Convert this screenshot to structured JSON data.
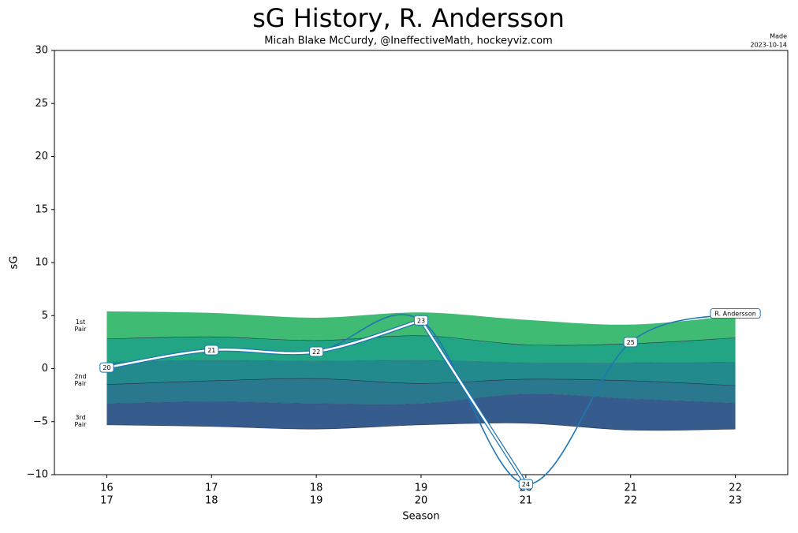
{
  "chart_data": {
    "type": "line",
    "title": "sG History, R. Andersson",
    "subtitle": "Micah Blake McCurdy, @IneffectiveMath, hockeyviz.com",
    "made": [
      "Made",
      "2023-10-14"
    ],
    "xlabel": "Season",
    "ylabel": "sG",
    "categories": [
      [
        "16",
        "17"
      ],
      [
        "17",
        "18"
      ],
      [
        "18",
        "19"
      ],
      [
        "19",
        "20"
      ],
      [
        "20",
        "21"
      ],
      [
        "21",
        "22"
      ],
      [
        "22",
        "23"
      ]
    ],
    "ylim": [
      -10,
      30
    ],
    "yticks": [
      {
        "value": -10,
        "label": "−10"
      },
      {
        "value": -5,
        "label": "−5"
      },
      0,
      5,
      10,
      15,
      20,
      25,
      30
    ],
    "bands": {
      "boundaries": [
        [
          5.4,
          5.25,
          4.8,
          5.3,
          4.6,
          4.15,
          5.0
        ],
        [
          2.8,
          3.0,
          2.65,
          3.1,
          2.25,
          2.35,
          2.9
        ],
        [
          0.6,
          0.8,
          0.7,
          0.8,
          0.55,
          0.55,
          0.6
        ],
        [
          -1.5,
          -1.15,
          -0.95,
          -1.4,
          -1.0,
          -1.15,
          -1.6
        ],
        [
          -3.3,
          -3.1,
          -3.3,
          -3.3,
          -2.4,
          -2.85,
          -3.25
        ],
        [
          -5.3,
          -5.45,
          -5.7,
          -5.3,
          -5.15,
          -5.8,
          -5.7
        ]
      ],
      "colors": [
        "#3fbb74",
        "#21a585",
        "#228a8c",
        "#2a788e",
        "#365c8d"
      ],
      "labels": [
        [
          "1st",
          "Pair"
        ],
        [
          "2nd",
          "Pair"
        ],
        [
          "3rd",
          "Pair"
        ]
      ]
    },
    "series": [
      {
        "name": "R. Andersson",
        "color": "#1f77b4",
        "values": [
          0.1,
          1.75,
          1.6,
          4.55,
          -10.9,
          2.5,
          5.2
        ],
        "point_labels": [
          "20",
          "21",
          "22",
          "23",
          "24",
          "25",
          "R. Andersson"
        ]
      }
    ]
  }
}
